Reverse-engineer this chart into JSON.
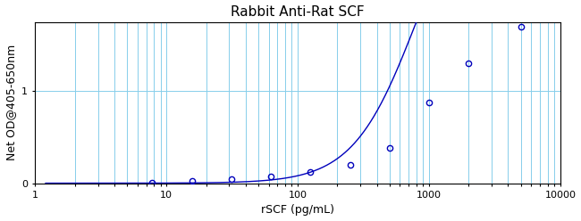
{
  "title": "Rabbit Anti-Rat SCF",
  "xlabel": "rSCF (pg/mL)",
  "ylabel": "Net OD@405-650nm",
  "x_data": [
    7.8,
    15.6,
    31.25,
    62.5,
    125,
    250,
    500,
    1000,
    2000,
    5000
  ],
  "y_data": [
    0.01,
    0.02,
    0.04,
    0.07,
    0.12,
    0.2,
    0.38,
    0.88,
    1.3,
    1.7
  ],
  "xlim": [
    1,
    10000
  ],
  "ylim": [
    0,
    1.75
  ],
  "line_color": "#0000BB",
  "marker_color": "#0000BB",
  "grid_color": "#87CEEB",
  "background_color": "#ffffff",
  "title_fontsize": 11,
  "label_fontsize": 9,
  "tick_fontsize": 8,
  "yticks": [
    0,
    1
  ],
  "figwidth": 6.5,
  "figheight": 2.48
}
